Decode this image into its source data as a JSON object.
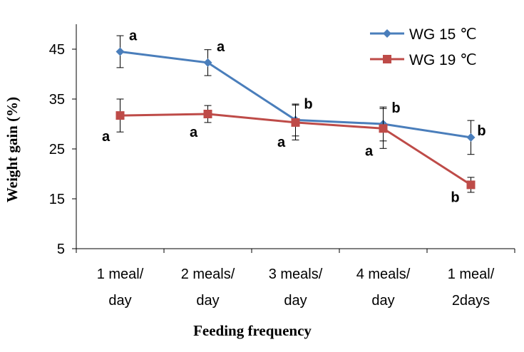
{
  "chart_data": {
    "type": "line",
    "xlabel": "Feeding frequency",
    "ylabel": "Weight gain (%)",
    "ylim": [
      5,
      50
    ],
    "yticks": [
      5,
      15,
      25,
      35,
      45
    ],
    "categories": [
      [
        "1 meal/",
        "day"
      ],
      [
        "2 meals/",
        "day"
      ],
      [
        "3 meals/",
        "day"
      ],
      [
        "4 meals/",
        "day"
      ],
      [
        "1 meal/",
        "2days"
      ]
    ],
    "series": [
      {
        "name": "WG 15 ℃",
        "color": "#4a7ebb",
        "marker": "diamond",
        "values": [
          44.5,
          42.3,
          30.8,
          30.0,
          27.3
        ],
        "errors": [
          3.2,
          2.6,
          3.2,
          3.4,
          3.4
        ],
        "letters": [
          "a",
          "a",
          "b",
          "b",
          "b"
        ]
      },
      {
        "name": "WG 19 ℃",
        "color": "#be4b48",
        "marker": "square",
        "values": [
          31.7,
          32.0,
          30.3,
          29.1,
          17.8
        ],
        "errors": [
          3.3,
          1.7,
          3.5,
          4.0,
          1.5
        ],
        "letters": [
          "a",
          "a",
          "a",
          "a",
          "b"
        ]
      }
    ],
    "legend": "top-right"
  }
}
